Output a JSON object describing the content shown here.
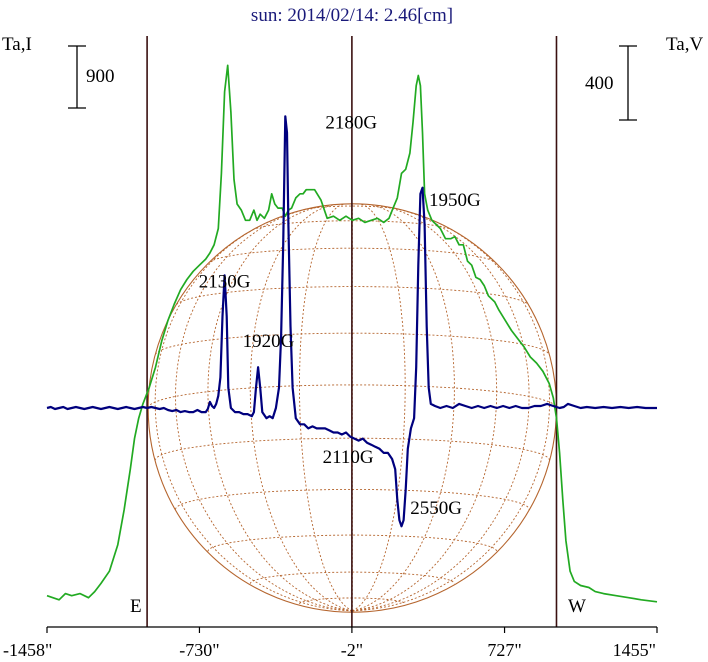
{
  "chart_data": {
    "type": "line",
    "title": "sun: 2014/02/14: 2.46[cm]",
    "ylabel_left": "Ta,I",
    "ylabel_right": "Ta,V",
    "scale_left": "900",
    "scale_right": "400",
    "limb_labels": {
      "east": "E",
      "west": "W"
    },
    "x_unit": "arcsec",
    "xlim": [
      -1458,
      1455
    ],
    "x_ticks": [
      {
        "value": -1458,
        "label": "-1458\""
      },
      {
        "value": -730,
        "label": "-730\""
      },
      {
        "value": -2,
        "label": "-2\""
      },
      {
        "value": 727,
        "label": "727\""
      },
      {
        "value": 1455,
        "label": "1455\""
      }
    ],
    "vertical_lines": [
      -980,
      -2,
      975
    ],
    "solar_radius_arcsec": 975,
    "series": [
      {
        "colour": "#22aa22",
        "points": [
          [
            -1458,
            -0.92
          ],
          [
            -1400,
            -0.94
          ],
          [
            -1370,
            -0.91
          ],
          [
            -1340,
            -0.92
          ],
          [
            -1300,
            -0.91
          ],
          [
            -1260,
            -0.93
          ],
          [
            -1230,
            -0.9
          ],
          [
            -1200,
            -0.86
          ],
          [
            -1160,
            -0.8
          ],
          [
            -1120,
            -0.67
          ],
          [
            -1090,
            -0.5
          ],
          [
            -1060,
            -0.3
          ],
          [
            -1040,
            -0.15
          ],
          [
            -1020,
            -0.05
          ],
          [
            -1000,
            0.02
          ],
          [
            -970,
            0.1
          ],
          [
            -940,
            0.2
          ],
          [
            -910,
            0.33
          ],
          [
            -880,
            0.43
          ],
          [
            -850,
            0.51
          ],
          [
            -820,
            0.58
          ],
          [
            -790,
            0.63
          ],
          [
            -760,
            0.67
          ],
          [
            -730,
            0.7
          ],
          [
            -700,
            0.73
          ],
          [
            -680,
            0.76
          ],
          [
            -660,
            0.8
          ],
          [
            -640,
            0.88
          ],
          [
            -625,
            1.15
          ],
          [
            -610,
            1.55
          ],
          [
            -595,
            1.68
          ],
          [
            -580,
            1.45
          ],
          [
            -565,
            1.12
          ],
          [
            -550,
            1.0
          ],
          [
            -530,
            0.97
          ],
          [
            -510,
            0.92
          ],
          [
            -490,
            0.92
          ],
          [
            -470,
            0.97
          ],
          [
            -455,
            0.92
          ],
          [
            -440,
            0.95
          ],
          [
            -420,
            0.93
          ],
          [
            -400,
            0.97
          ],
          [
            -385,
            1.05
          ],
          [
            -370,
            1.0
          ],
          [
            -355,
            0.98
          ],
          [
            -335,
            0.98
          ],
          [
            -320,
            0.94
          ],
          [
            -305,
            0.97
          ],
          [
            -290,
            0.98
          ],
          [
            -270,
            1.03
          ],
          [
            -250,
            1.05
          ],
          [
            -235,
            1.05
          ],
          [
            -220,
            1.07
          ],
          [
            -180,
            1.07
          ],
          [
            -150,
            1.02
          ],
          [
            -120,
            0.93
          ],
          [
            -90,
            0.94
          ],
          [
            -60,
            0.92
          ],
          [
            -30,
            0.94
          ],
          [
            0,
            0.92
          ],
          [
            30,
            0.93
          ],
          [
            60,
            0.91
          ],
          [
            90,
            0.92
          ],
          [
            120,
            0.93
          ],
          [
            150,
            0.91
          ],
          [
            175,
            0.93
          ],
          [
            195,
            0.98
          ],
          [
            215,
            1.03
          ],
          [
            235,
            1.15
          ],
          [
            255,
            1.17
          ],
          [
            275,
            1.25
          ],
          [
            290,
            1.4
          ],
          [
            305,
            1.58
          ],
          [
            315,
            1.63
          ],
          [
            325,
            1.58
          ],
          [
            335,
            1.35
          ],
          [
            345,
            1.05
          ],
          [
            360,
            0.97
          ],
          [
            380,
            0.92
          ],
          [
            400,
            0.9
          ],
          [
            420,
            0.88
          ],
          [
            445,
            0.83
          ],
          [
            470,
            0.83
          ],
          [
            490,
            0.84
          ],
          [
            510,
            0.8
          ],
          [
            530,
            0.8
          ],
          [
            550,
            0.72
          ],
          [
            570,
            0.7
          ],
          [
            590,
            0.64
          ],
          [
            610,
            0.63
          ],
          [
            630,
            0.6
          ],
          [
            650,
            0.55
          ],
          [
            680,
            0.52
          ],
          [
            700,
            0.48
          ],
          [
            730,
            0.43
          ],
          [
            760,
            0.38
          ],
          [
            790,
            0.34
          ],
          [
            820,
            0.3
          ],
          [
            850,
            0.25
          ],
          [
            880,
            0.22
          ],
          [
            910,
            0.18
          ],
          [
            940,
            0.12
          ],
          [
            960,
            0.05
          ],
          [
            975,
            -0.05
          ],
          [
            990,
            -0.22
          ],
          [
            1005,
            -0.45
          ],
          [
            1020,
            -0.65
          ],
          [
            1040,
            -0.8
          ],
          [
            1060,
            -0.85
          ],
          [
            1090,
            -0.87
          ],
          [
            1130,
            -0.88
          ],
          [
            1160,
            -0.9
          ],
          [
            1200,
            -0.91
          ],
          [
            1260,
            -0.92
          ],
          [
            1320,
            -0.93
          ],
          [
            1380,
            -0.94
          ],
          [
            1455,
            -0.95
          ]
        ]
      },
      {
        "colour": "#00007e",
        "points": [
          [
            -1458,
            0.0
          ],
          [
            -1440,
            0.005
          ],
          [
            -1420,
            -0.005
          ],
          [
            -1400,
            0.0
          ],
          [
            -1380,
            0.005
          ],
          [
            -1360,
            -0.005
          ],
          [
            -1340,
            0.0
          ],
          [
            -1320,
            0.005
          ],
          [
            -1300,
            0.0
          ],
          [
            -1280,
            -0.005
          ],
          [
            -1260,
            0.0
          ],
          [
            -1240,
            0.005
          ],
          [
            -1220,
            0.0
          ],
          [
            -1200,
            -0.005
          ],
          [
            -1180,
            0.0
          ],
          [
            -1160,
            0.005
          ],
          [
            -1140,
            0.0
          ],
          [
            -1120,
            -0.005
          ],
          [
            -1100,
            0.0
          ],
          [
            -1080,
            0.005
          ],
          [
            -1060,
            0.0
          ],
          [
            -1040,
            -0.005
          ],
          [
            -1020,
            0.0
          ],
          [
            -1000,
            0.005
          ],
          [
            -980,
            0.0
          ],
          [
            -960,
            0.005
          ],
          [
            -940,
            0.0
          ],
          [
            -920,
            -0.005
          ],
          [
            -900,
            0.0
          ],
          [
            -880,
            -0.01
          ],
          [
            -860,
            -0.015
          ],
          [
            -840,
            -0.01
          ],
          [
            -820,
            -0.02
          ],
          [
            -800,
            -0.015
          ],
          [
            -780,
            -0.02
          ],
          [
            -760,
            -0.02
          ],
          [
            -740,
            -0.01
          ],
          [
            -720,
            -0.02
          ],
          [
            -700,
            -0.02
          ],
          [
            -690,
            -0.005
          ],
          [
            -680,
            0.03
          ],
          [
            -670,
            0.01
          ],
          [
            -660,
            0.0
          ],
          [
            -650,
            0.02
          ],
          [
            -640,
            0.06
          ],
          [
            -630,
            0.15
          ],
          [
            -620,
            0.45
          ],
          [
            -610,
            0.65
          ],
          [
            -600,
            0.45
          ],
          [
            -592,
            0.1
          ],
          [
            -580,
            0.0
          ],
          [
            -560,
            -0.02
          ],
          [
            -540,
            -0.02
          ],
          [
            -520,
            -0.03
          ],
          [
            -500,
            -0.03
          ],
          [
            -480,
            -0.04
          ],
          [
            -470,
            -0.02
          ],
          [
            -460,
            0.1
          ],
          [
            -450,
            0.2
          ],
          [
            -440,
            0.1
          ],
          [
            -430,
            -0.02
          ],
          [
            -410,
            -0.05
          ],
          [
            -395,
            -0.04
          ],
          [
            -380,
            -0.05
          ],
          [
            -365,
            0.0
          ],
          [
            -350,
            0.1
          ],
          [
            -340,
            0.35
          ],
          [
            -330,
            0.8
          ],
          [
            -320,
            1.43
          ],
          [
            -312,
            1.35
          ],
          [
            -305,
            0.9
          ],
          [
            -295,
            0.4
          ],
          [
            -285,
            0.1
          ],
          [
            -270,
            -0.05
          ],
          [
            -250,
            -0.08
          ],
          [
            -230,
            -0.08
          ],
          [
            -210,
            -0.1
          ],
          [
            -190,
            -0.09
          ],
          [
            -170,
            -0.1
          ],
          [
            -150,
            -0.1
          ],
          [
            -130,
            -0.1
          ],
          [
            -110,
            -0.11
          ],
          [
            -90,
            -0.12
          ],
          [
            -70,
            -0.12
          ],
          [
            -50,
            -0.13
          ],
          [
            -30,
            -0.12
          ],
          [
            -10,
            -0.14
          ],
          [
            10,
            -0.15
          ],
          [
            30,
            -0.16
          ],
          [
            50,
            -0.15
          ],
          [
            70,
            -0.17
          ],
          [
            90,
            -0.18
          ],
          [
            110,
            -0.19
          ],
          [
            130,
            -0.2
          ],
          [
            150,
            -0.22
          ],
          [
            170,
            -0.22
          ],
          [
            190,
            -0.25
          ],
          [
            205,
            -0.3
          ],
          [
            215,
            -0.45
          ],
          [
            225,
            -0.55
          ],
          [
            235,
            -0.58
          ],
          [
            245,
            -0.55
          ],
          [
            255,
            -0.4
          ],
          [
            265,
            -0.2
          ],
          [
            280,
            -0.1
          ],
          [
            295,
            -0.05
          ],
          [
            305,
            0.2
          ],
          [
            315,
            0.7
          ],
          [
            325,
            1.05
          ],
          [
            335,
            1.08
          ],
          [
            345,
            0.9
          ],
          [
            355,
            0.4
          ],
          [
            365,
            0.1
          ],
          [
            375,
            0.02
          ],
          [
            395,
            0.01
          ],
          [
            420,
            0.0
          ],
          [
            450,
            0.01
          ],
          [
            480,
            0.0
          ],
          [
            510,
            0.02
          ],
          [
            540,
            0.01
          ],
          [
            570,
            0.0
          ],
          [
            600,
            0.01
          ],
          [
            630,
            0.0
          ],
          [
            660,
            0.01
          ],
          [
            690,
            0.0
          ],
          [
            720,
            0.01
          ],
          [
            750,
            0.0
          ],
          [
            780,
            0.01
          ],
          [
            810,
            0.0
          ],
          [
            840,
            0.0
          ],
          [
            870,
            0.01
          ],
          [
            900,
            0.01
          ],
          [
            930,
            0.02
          ],
          [
            960,
            0.01
          ],
          [
            990,
            0.0
          ],
          [
            1010,
            0.005
          ],
          [
            1030,
            0.02
          ],
          [
            1060,
            0.01
          ],
          [
            1090,
            0.0
          ],
          [
            1120,
            0.005
          ],
          [
            1160,
            0.0
          ],
          [
            1200,
            0.005
          ],
          [
            1240,
            0.0
          ],
          [
            1280,
            0.005
          ],
          [
            1320,
            0.0
          ],
          [
            1360,
            0.005
          ],
          [
            1400,
            0.0
          ],
          [
            1455,
            0.0
          ]
        ]
      }
    ],
    "annotations": [
      {
        "text": "2180G",
        "x": -5,
        "y": 1.37
      },
      {
        "text": "1950G",
        "x": 490,
        "y": 0.99
      },
      {
        "text": "2130G",
        "x": -610,
        "y": 0.59
      },
      {
        "text": "1920G",
        "x": -400,
        "y": 0.3
      },
      {
        "text": "2110G",
        "x": -20,
        "y": -0.27
      },
      {
        "text": "2550G",
        "x": 400,
        "y": -0.52
      }
    ]
  }
}
